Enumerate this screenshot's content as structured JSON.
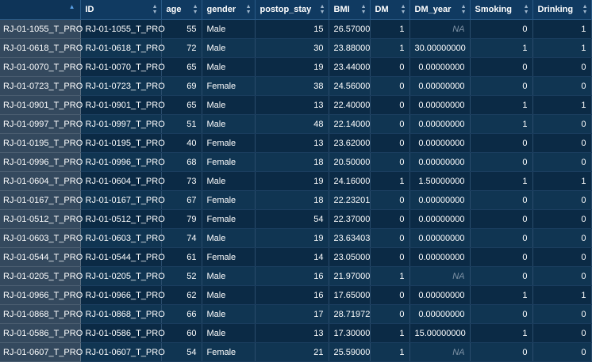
{
  "columns": [
    {
      "label": "ID",
      "type": "txt"
    },
    {
      "label": "age",
      "type": "num"
    },
    {
      "label": "gender",
      "type": "txt"
    },
    {
      "label": "postop_stay",
      "type": "num"
    },
    {
      "label": "BMI",
      "type": "num"
    },
    {
      "label": "DM",
      "type": "num"
    },
    {
      "label": "DM_year",
      "type": "num"
    },
    {
      "label": "Smoking",
      "type": "num"
    },
    {
      "label": "Drinking",
      "type": "num"
    }
  ],
  "rows": [
    {
      "name": "RJ-01-1055_T_PRO",
      "cells": [
        "RJ-01-1055_T_PRO",
        "55",
        "Male",
        "15",
        "26.57000",
        "1",
        "NA",
        "0",
        "1"
      ]
    },
    {
      "name": "RJ-01-0618_T_PRO",
      "cells": [
        "RJ-01-0618_T_PRO",
        "72",
        "Male",
        "30",
        "23.88000",
        "1",
        "30.00000000",
        "1",
        "1"
      ]
    },
    {
      "name": "RJ-01-0070_T_PRO",
      "cells": [
        "RJ-01-0070_T_PRO",
        "65",
        "Male",
        "19",
        "23.44000",
        "0",
        "0.00000000",
        "0",
        "0"
      ]
    },
    {
      "name": "RJ-01-0723_T_PRO",
      "cells": [
        "RJ-01-0723_T_PRO",
        "69",
        "Female",
        "38",
        "24.56000",
        "0",
        "0.00000000",
        "0",
        "0"
      ]
    },
    {
      "name": "RJ-01-0901_T_PRO",
      "cells": [
        "RJ-01-0901_T_PRO",
        "65",
        "Male",
        "13",
        "22.40000",
        "0",
        "0.00000000",
        "1",
        "1"
      ]
    },
    {
      "name": "RJ-01-0997_T_PRO",
      "cells": [
        "RJ-01-0997_T_PRO",
        "51",
        "Male",
        "48",
        "22.14000",
        "0",
        "0.00000000",
        "1",
        "0"
      ]
    },
    {
      "name": "RJ-01-0195_T_PRO",
      "cells": [
        "RJ-01-0195_T_PRO",
        "40",
        "Female",
        "13",
        "23.62000",
        "0",
        "0.00000000",
        "0",
        "0"
      ]
    },
    {
      "name": "RJ-01-0996_T_PRO",
      "cells": [
        "RJ-01-0996_T_PRO",
        "68",
        "Female",
        "18",
        "20.50000",
        "0",
        "0.00000000",
        "0",
        "0"
      ]
    },
    {
      "name": "RJ-01-0604_T_PRO",
      "cells": [
        "RJ-01-0604_T_PRO",
        "73",
        "Male",
        "19",
        "24.16000",
        "1",
        "1.50000000",
        "1",
        "1"
      ]
    },
    {
      "name": "RJ-01-0167_T_PRO",
      "cells": [
        "RJ-01-0167_T_PRO",
        "67",
        "Female",
        "18",
        "22.23201",
        "0",
        "0.00000000",
        "0",
        "0"
      ]
    },
    {
      "name": "RJ-01-0512_T_PRO",
      "cells": [
        "RJ-01-0512_T_PRO",
        "79",
        "Female",
        "54",
        "22.37000",
        "0",
        "0.00000000",
        "0",
        "0"
      ]
    },
    {
      "name": "RJ-01-0603_T_PRO",
      "cells": [
        "RJ-01-0603_T_PRO",
        "74",
        "Male",
        "19",
        "23.63403",
        "0",
        "0.00000000",
        "0",
        "0"
      ]
    },
    {
      "name": "RJ-01-0544_T_PRO",
      "cells": [
        "RJ-01-0544_T_PRO",
        "61",
        "Female",
        "14",
        "23.05000",
        "0",
        "0.00000000",
        "0",
        "0"
      ]
    },
    {
      "name": "RJ-01-0205_T_PRO",
      "cells": [
        "RJ-01-0205_T_PRO",
        "52",
        "Male",
        "16",
        "21.97000",
        "1",
        "NA",
        "0",
        "0"
      ]
    },
    {
      "name": "RJ-01-0966_T_PRO",
      "cells": [
        "RJ-01-0966_T_PRO",
        "62",
        "Male",
        "16",
        "17.65000",
        "0",
        "0.00000000",
        "1",
        "1"
      ]
    },
    {
      "name": "RJ-01-0868_T_PRO",
      "cells": [
        "RJ-01-0868_T_PRO",
        "66",
        "Male",
        "17",
        "28.71972",
        "0",
        "0.00000000",
        "0",
        "0"
      ]
    },
    {
      "name": "RJ-01-0586_T_PRO",
      "cells": [
        "RJ-01-0586_T_PRO",
        "60",
        "Male",
        "13",
        "17.30000",
        "1",
        "15.00000000",
        "1",
        "0"
      ]
    },
    {
      "name": "RJ-01-0607_T_PRO",
      "cells": [
        "RJ-01-0607_T_PRO",
        "54",
        "Female",
        "21",
        "25.59000",
        "1",
        "NA",
        "0",
        "0"
      ]
    }
  ],
  "na_text": "NA",
  "colors": {
    "background": "#0b2a45",
    "header": "#103a61",
    "rowname": "#34495e",
    "na": "#7f93a6"
  },
  "icons": {
    "corner": "sort-up-icon",
    "column_sort": "sort-updown-icon"
  }
}
